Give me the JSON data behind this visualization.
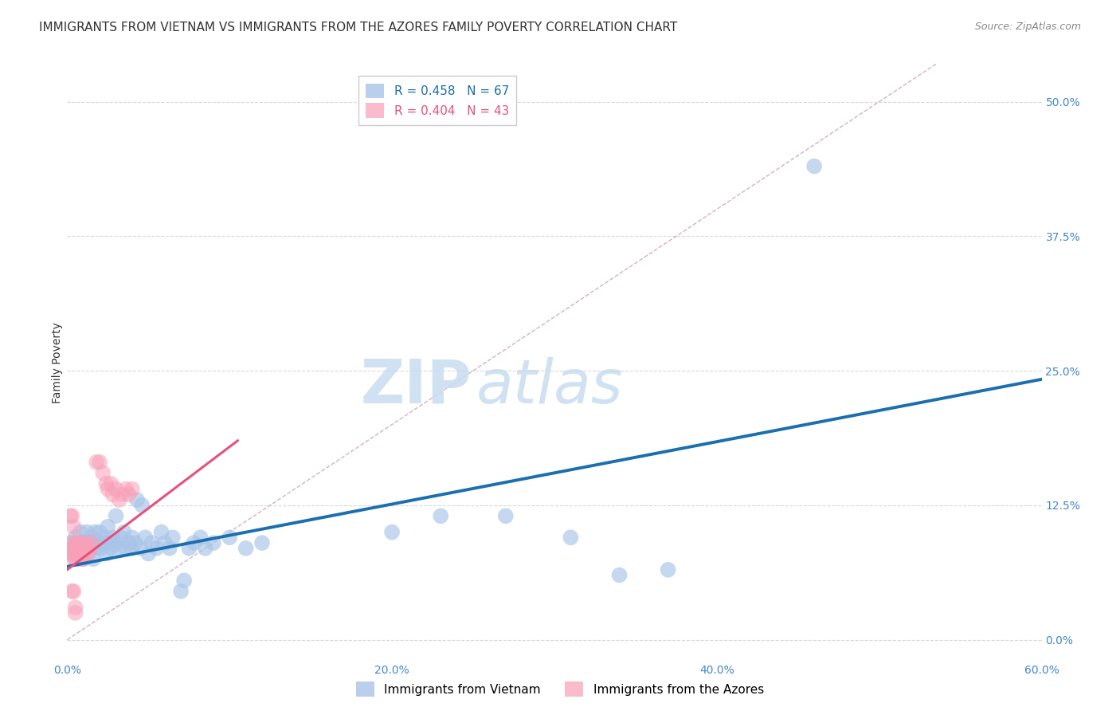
{
  "title": "IMMIGRANTS FROM VIETNAM VS IMMIGRANTS FROM THE AZORES FAMILY POVERTY CORRELATION CHART",
  "source": "Source: ZipAtlas.com",
  "ylabel": "Family Poverty",
  "ytick_labels": [
    "0.0%",
    "12.5%",
    "25.0%",
    "37.5%",
    "50.0%"
  ],
  "ytick_values": [
    0.0,
    0.125,
    0.25,
    0.375,
    0.5
  ],
  "xtick_labels": [
    "0.0%",
    "20.0%",
    "40.0%",
    "60.0%"
  ],
  "xtick_values": [
    0.0,
    0.2,
    0.4,
    0.6
  ],
  "xmin": 0.0,
  "xmax": 0.6,
  "ymin": -0.02,
  "ymax": 0.535,
  "legend_R_blue": "0.458",
  "legend_N_blue": "67",
  "legend_R_pink": "0.404",
  "legend_N_pink": "43",
  "legend_label_blue": "Immigrants from Vietnam",
  "legend_label_pink": "Immigrants from the Azores",
  "regression_line_blue": {
    "x0": 0.0,
    "y0": 0.068,
    "x1": 0.6,
    "y1": 0.242
  },
  "regression_line_pink": {
    "x0": 0.0,
    "y0": 0.065,
    "x1": 0.105,
    "y1": 0.185
  },
  "diagonal_line": {
    "x0": 0.0,
    "y0": 0.0,
    "x1": 0.535,
    "y1": 0.535
  },
  "watermark_zip": "ZIP",
  "watermark_atlas": "atlas",
  "blue_scatter": [
    [
      0.003,
      0.09
    ],
    [
      0.004,
      0.085
    ],
    [
      0.005,
      0.095
    ],
    [
      0.005,
      0.08
    ],
    [
      0.006,
      0.075
    ],
    [
      0.007,
      0.09
    ],
    [
      0.008,
      0.1
    ],
    [
      0.008,
      0.085
    ],
    [
      0.009,
      0.08
    ],
    [
      0.01,
      0.09
    ],
    [
      0.01,
      0.075
    ],
    [
      0.011,
      0.085
    ],
    [
      0.012,
      0.1
    ],
    [
      0.013,
      0.08
    ],
    [
      0.014,
      0.09
    ],
    [
      0.015,
      0.085
    ],
    [
      0.015,
      0.095
    ],
    [
      0.016,
      0.075
    ],
    [
      0.017,
      0.1
    ],
    [
      0.018,
      0.085
    ],
    [
      0.019,
      0.09
    ],
    [
      0.02,
      0.1
    ],
    [
      0.021,
      0.085
    ],
    [
      0.022,
      0.09
    ],
    [
      0.023,
      0.095
    ],
    [
      0.024,
      0.08
    ],
    [
      0.025,
      0.105
    ],
    [
      0.026,
      0.09
    ],
    [
      0.027,
      0.085
    ],
    [
      0.028,
      0.095
    ],
    [
      0.03,
      0.115
    ],
    [
      0.03,
      0.09
    ],
    [
      0.032,
      0.085
    ],
    [
      0.033,
      0.095
    ],
    [
      0.035,
      0.1
    ],
    [
      0.036,
      0.085
    ],
    [
      0.038,
      0.09
    ],
    [
      0.04,
      0.095
    ],
    [
      0.04,
      0.085
    ],
    [
      0.042,
      0.09
    ],
    [
      0.043,
      0.13
    ],
    [
      0.045,
      0.085
    ],
    [
      0.046,
      0.125
    ],
    [
      0.048,
      0.095
    ],
    [
      0.05,
      0.08
    ],
    [
      0.052,
      0.09
    ],
    [
      0.055,
      0.085
    ],
    [
      0.058,
      0.1
    ],
    [
      0.06,
      0.09
    ],
    [
      0.063,
      0.085
    ],
    [
      0.065,
      0.095
    ],
    [
      0.07,
      0.045
    ],
    [
      0.072,
      0.055
    ],
    [
      0.075,
      0.085
    ],
    [
      0.078,
      0.09
    ],
    [
      0.082,
      0.095
    ],
    [
      0.085,
      0.085
    ],
    [
      0.09,
      0.09
    ],
    [
      0.1,
      0.095
    ],
    [
      0.11,
      0.085
    ],
    [
      0.12,
      0.09
    ],
    [
      0.2,
      0.1
    ],
    [
      0.23,
      0.115
    ],
    [
      0.27,
      0.115
    ],
    [
      0.31,
      0.095
    ],
    [
      0.34,
      0.06
    ],
    [
      0.37,
      0.065
    ],
    [
      0.46,
      0.44
    ]
  ],
  "pink_scatter": [
    [
      0.002,
      0.08
    ],
    [
      0.003,
      0.085
    ],
    [
      0.003,
      0.09
    ],
    [
      0.004,
      0.075
    ],
    [
      0.004,
      0.08
    ],
    [
      0.005,
      0.085
    ],
    [
      0.005,
      0.09
    ],
    [
      0.005,
      0.075
    ],
    [
      0.006,
      0.08
    ],
    [
      0.006,
      0.085
    ],
    [
      0.007,
      0.09
    ],
    [
      0.007,
      0.08
    ],
    [
      0.008,
      0.075
    ],
    [
      0.008,
      0.085
    ],
    [
      0.009,
      0.08
    ],
    [
      0.009,
      0.09
    ],
    [
      0.01,
      0.085
    ],
    [
      0.01,
      0.075
    ],
    [
      0.011,
      0.08
    ],
    [
      0.012,
      0.09
    ],
    [
      0.013,
      0.08
    ],
    [
      0.014,
      0.085
    ],
    [
      0.015,
      0.09
    ],
    [
      0.003,
      0.045
    ],
    [
      0.004,
      0.045
    ],
    [
      0.005,
      0.025
    ],
    [
      0.005,
      0.03
    ],
    [
      0.002,
      0.115
    ],
    [
      0.003,
      0.115
    ],
    [
      0.004,
      0.105
    ],
    [
      0.018,
      0.165
    ],
    [
      0.02,
      0.165
    ],
    [
      0.022,
      0.155
    ],
    [
      0.024,
      0.145
    ],
    [
      0.025,
      0.14
    ],
    [
      0.027,
      0.145
    ],
    [
      0.028,
      0.135
    ],
    [
      0.03,
      0.14
    ],
    [
      0.032,
      0.13
    ],
    [
      0.034,
      0.135
    ],
    [
      0.036,
      0.14
    ],
    [
      0.038,
      0.135
    ],
    [
      0.04,
      0.14
    ]
  ],
  "title_fontsize": 11,
  "axis_label_fontsize": 10,
  "tick_fontsize": 10,
  "legend_fontsize": 11,
  "source_fontsize": 9,
  "blue_scatter_color": "#a8c4e8",
  "pink_scatter_color": "#f8a0b8",
  "blue_line_color": "#1a6faf",
  "pink_line_color": "#e8507a",
  "diagonal_color": "#d8b0c0",
  "grid_color": "#d8d8d8",
  "watermark_zip_color": "#c8ddf0",
  "watermark_atlas_color": "#c8ddf0",
  "watermark_fontsize": 55,
  "right_tick_color": "#4488cc"
}
